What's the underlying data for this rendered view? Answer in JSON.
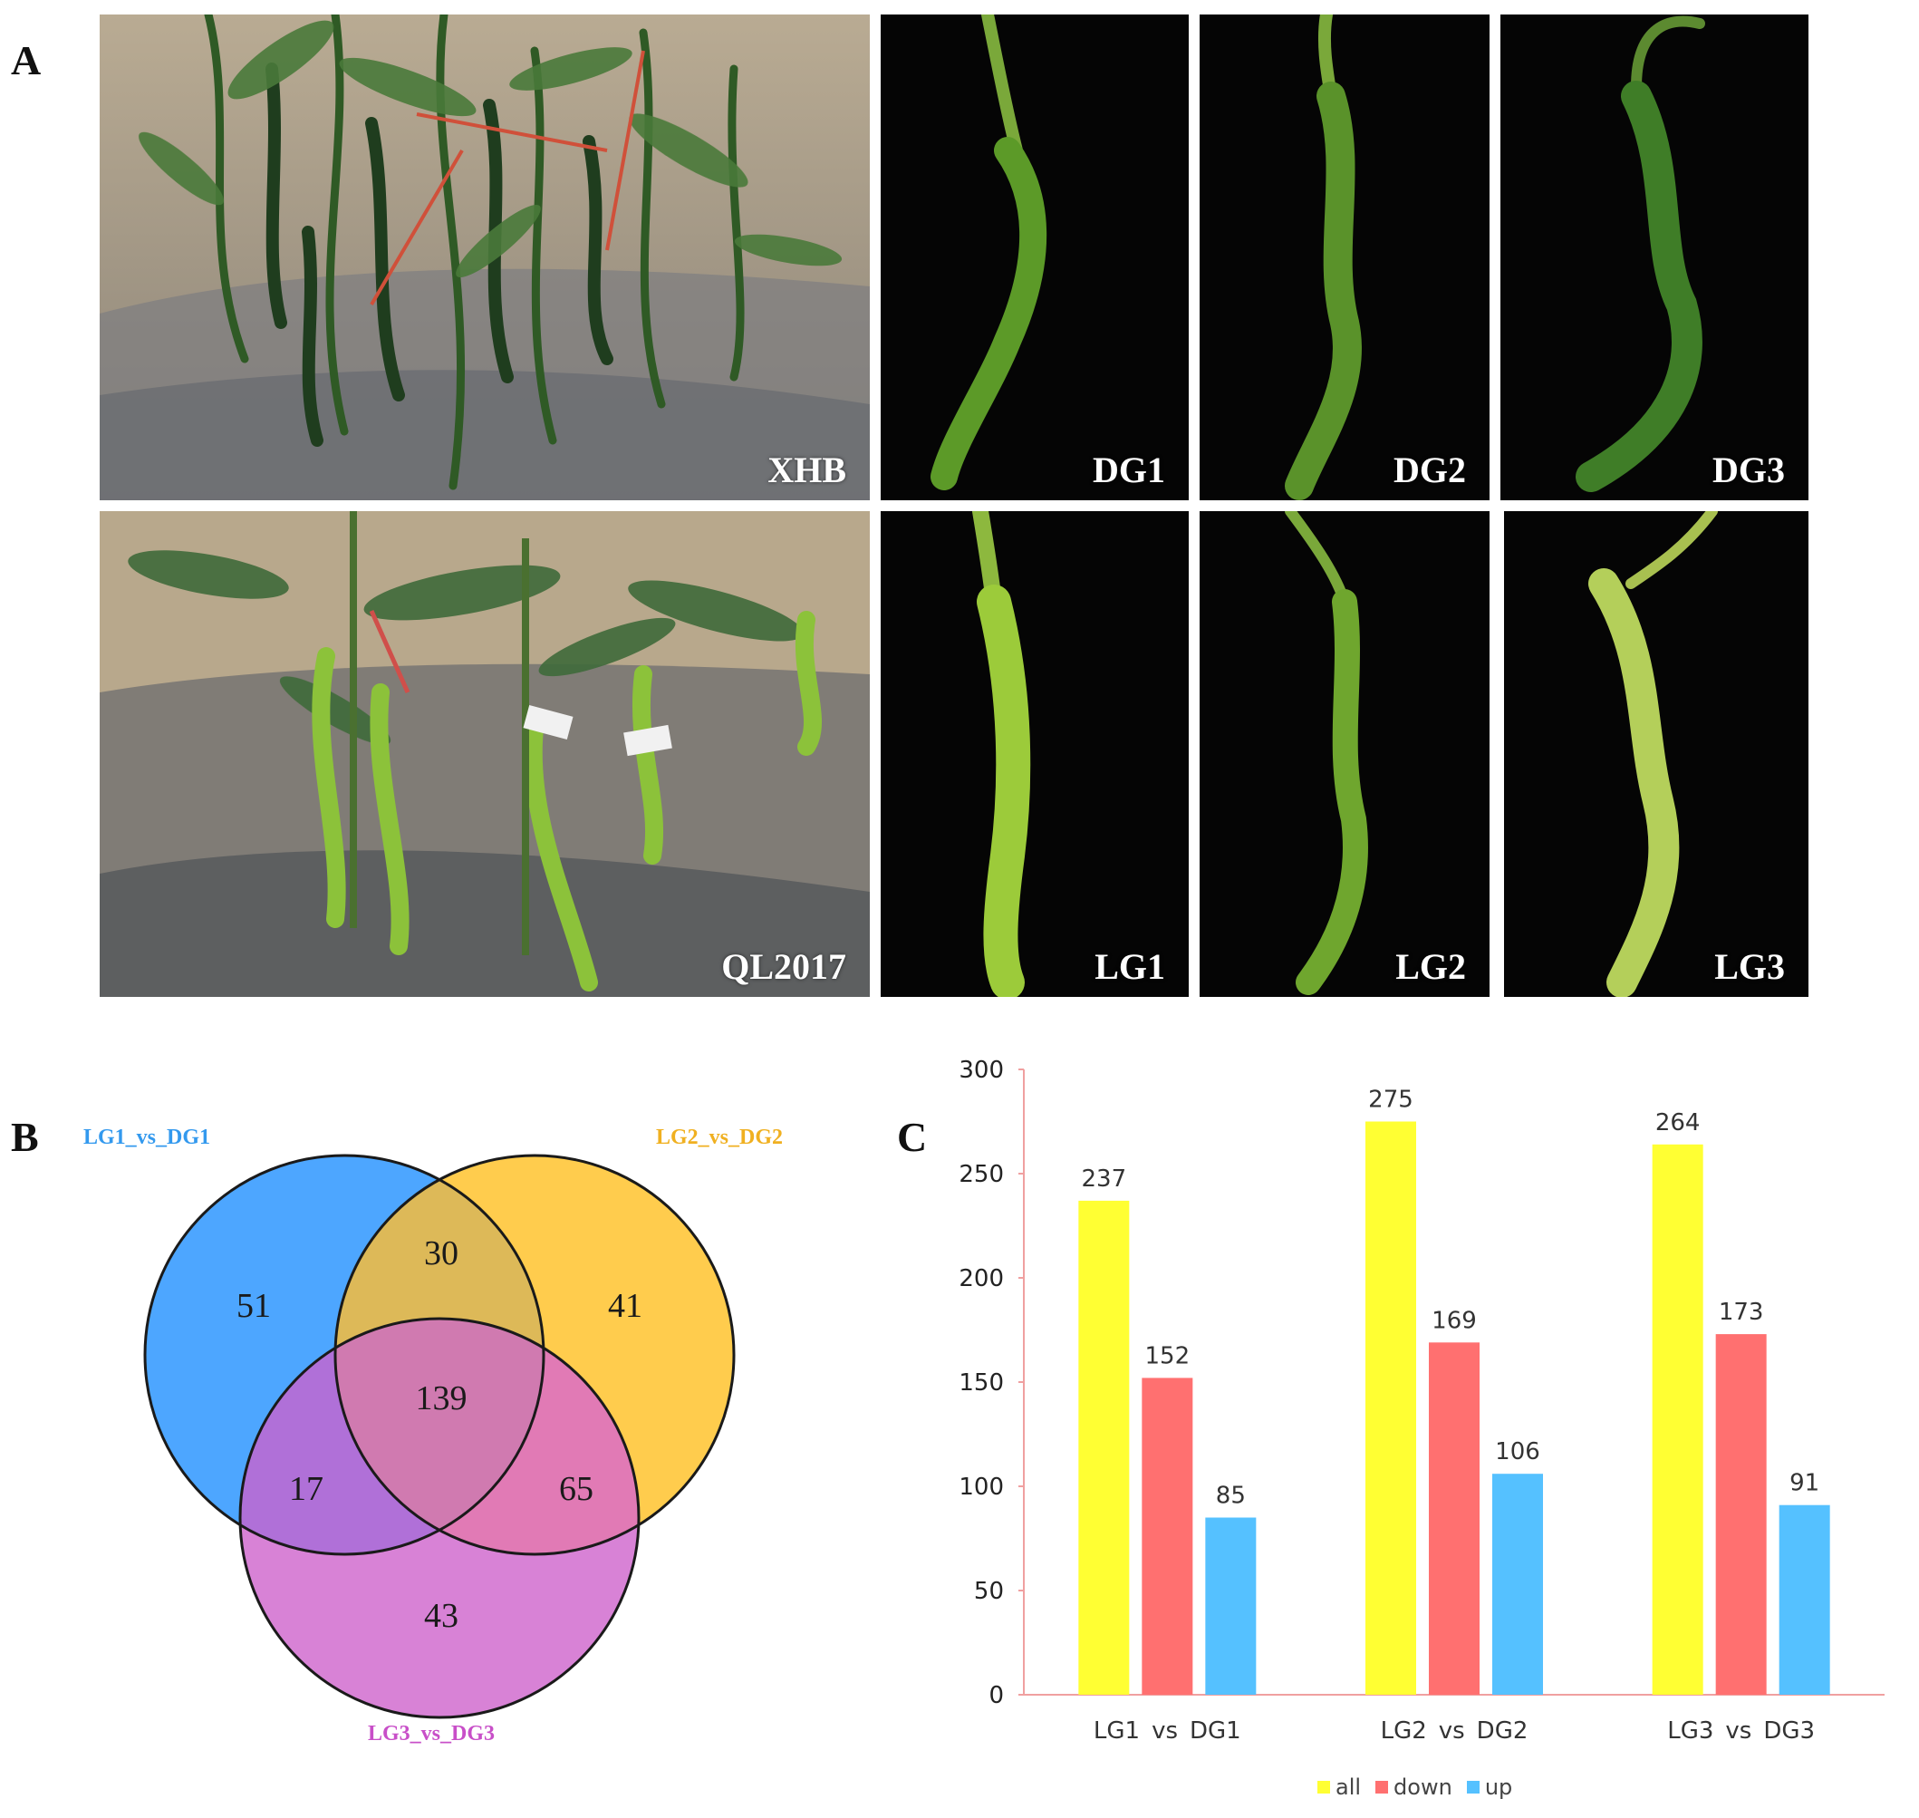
{
  "panel_letters": {
    "a": "A",
    "b": "B",
    "c": "C"
  },
  "photos": {
    "xhb": {
      "label": "XHB",
      "scene": "field-dark-pepper-plants"
    },
    "ql2017": {
      "label": "QL2017",
      "scene": "field-light-pepper-plants"
    },
    "dg1": {
      "label": "DG1",
      "fruit_color": "#5c9a28"
    },
    "dg2": {
      "label": "DG2",
      "fruit_color": "#5a922a"
    },
    "dg3": {
      "label": "DG3",
      "fruit_color": "#3f7d27"
    },
    "lg1": {
      "label": "LG1",
      "fruit_color": "#9ccb3a"
    },
    "lg2": {
      "label": "LG2",
      "fruit_color": "#6fa62e"
    },
    "lg3": {
      "label": "LG3",
      "fruit_color": "#b4cf5a"
    }
  },
  "venn": {
    "sets": [
      {
        "name": "LG1_vs_DG1",
        "color": "#4da6ff",
        "label_color": "#3399ee"
      },
      {
        "name": "LG2_vs_DG2",
        "color": "#ffcc4d",
        "label_color": "#f0b020"
      },
      {
        "name": "LG3_vs_DG3",
        "color": "#d882d6",
        "label_color": "#c84fc8"
      }
    ],
    "regions": {
      "only_1": "51",
      "only_2": "41",
      "only_3": "43",
      "r12": "30",
      "r13": "17",
      "r23": "65",
      "r123": "139"
    },
    "region_colors": {
      "r12": "#ddb958",
      "r13": "#b070d8",
      "r23": "#e17ab5",
      "r123": "#d07ab0"
    }
  },
  "chart_data": {
    "type": "bar",
    "categories": [
      "LG1_vs_DG1",
      "LG2_vs_DG2",
      "LG3_vs_DG3"
    ],
    "series": [
      {
        "name": "all",
        "values": [
          237,
          275,
          264
        ],
        "color": "#ffff33"
      },
      {
        "name": "down",
        "values": [
          152,
          169,
          173
        ],
        "color": "#ff7070"
      },
      {
        "name": "up",
        "values": [
          85,
          106,
          91
        ],
        "color": "#55c1ff"
      }
    ],
    "ylim": [
      0,
      300
    ],
    "yticks": [
      0,
      50,
      100,
      150,
      200,
      250,
      300
    ],
    "axis_color": "#f0a0a0",
    "grid": false,
    "legend_position": "bottom-center",
    "data_labels": true
  }
}
